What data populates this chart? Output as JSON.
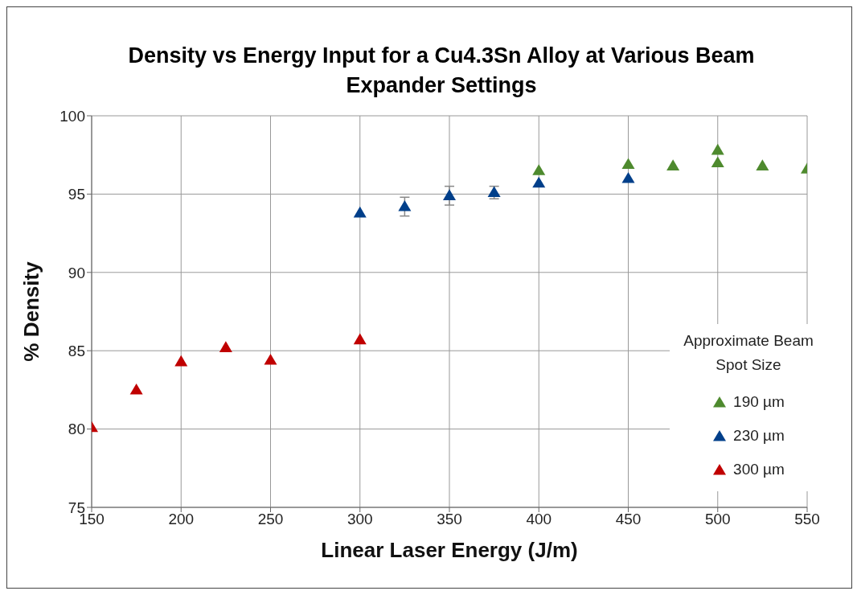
{
  "chart_data": {
    "type": "scatter",
    "title": "Density vs Energy Input for a Cu4.3Sn Alloy at Various Beam Expander Settings",
    "xlabel": "Linear Laser Energy (J/m)",
    "ylabel": "% Density",
    "legend_title": "Approximate Beam Spot Size",
    "xlim": [
      150,
      550
    ],
    "xticks": [
      150,
      200,
      250,
      300,
      350,
      400,
      450,
      500,
      550
    ],
    "ylim": [
      75,
      100
    ],
    "yticks": [
      75,
      80,
      85,
      90,
      95,
      100
    ],
    "grid": true,
    "legend": "bottom right",
    "marker": "triangle",
    "series": [
      {
        "name": "190 µm",
        "color": "#4e8a2e",
        "x": [
          400,
          450,
          475,
          500,
          500,
          525,
          550
        ],
        "values": [
          96.5,
          96.9,
          96.8,
          97.8,
          97.0,
          96.8,
          96.6
        ]
      },
      {
        "name": "230 µm",
        "color": "#003f8a",
        "x": [
          300,
          325,
          350,
          375,
          400,
          450
        ],
        "values": [
          93.8,
          94.2,
          94.9,
          95.1,
          95.7,
          96.0
        ],
        "errors": [
          null,
          0.6,
          0.6,
          0.4,
          null,
          null
        ]
      },
      {
        "name": "300 µm",
        "color": "#c00000",
        "x": [
          150,
          175,
          200,
          225,
          250,
          300
        ],
        "values": [
          80.1,
          82.5,
          84.3,
          85.2,
          84.4,
          85.7
        ]
      }
    ]
  }
}
